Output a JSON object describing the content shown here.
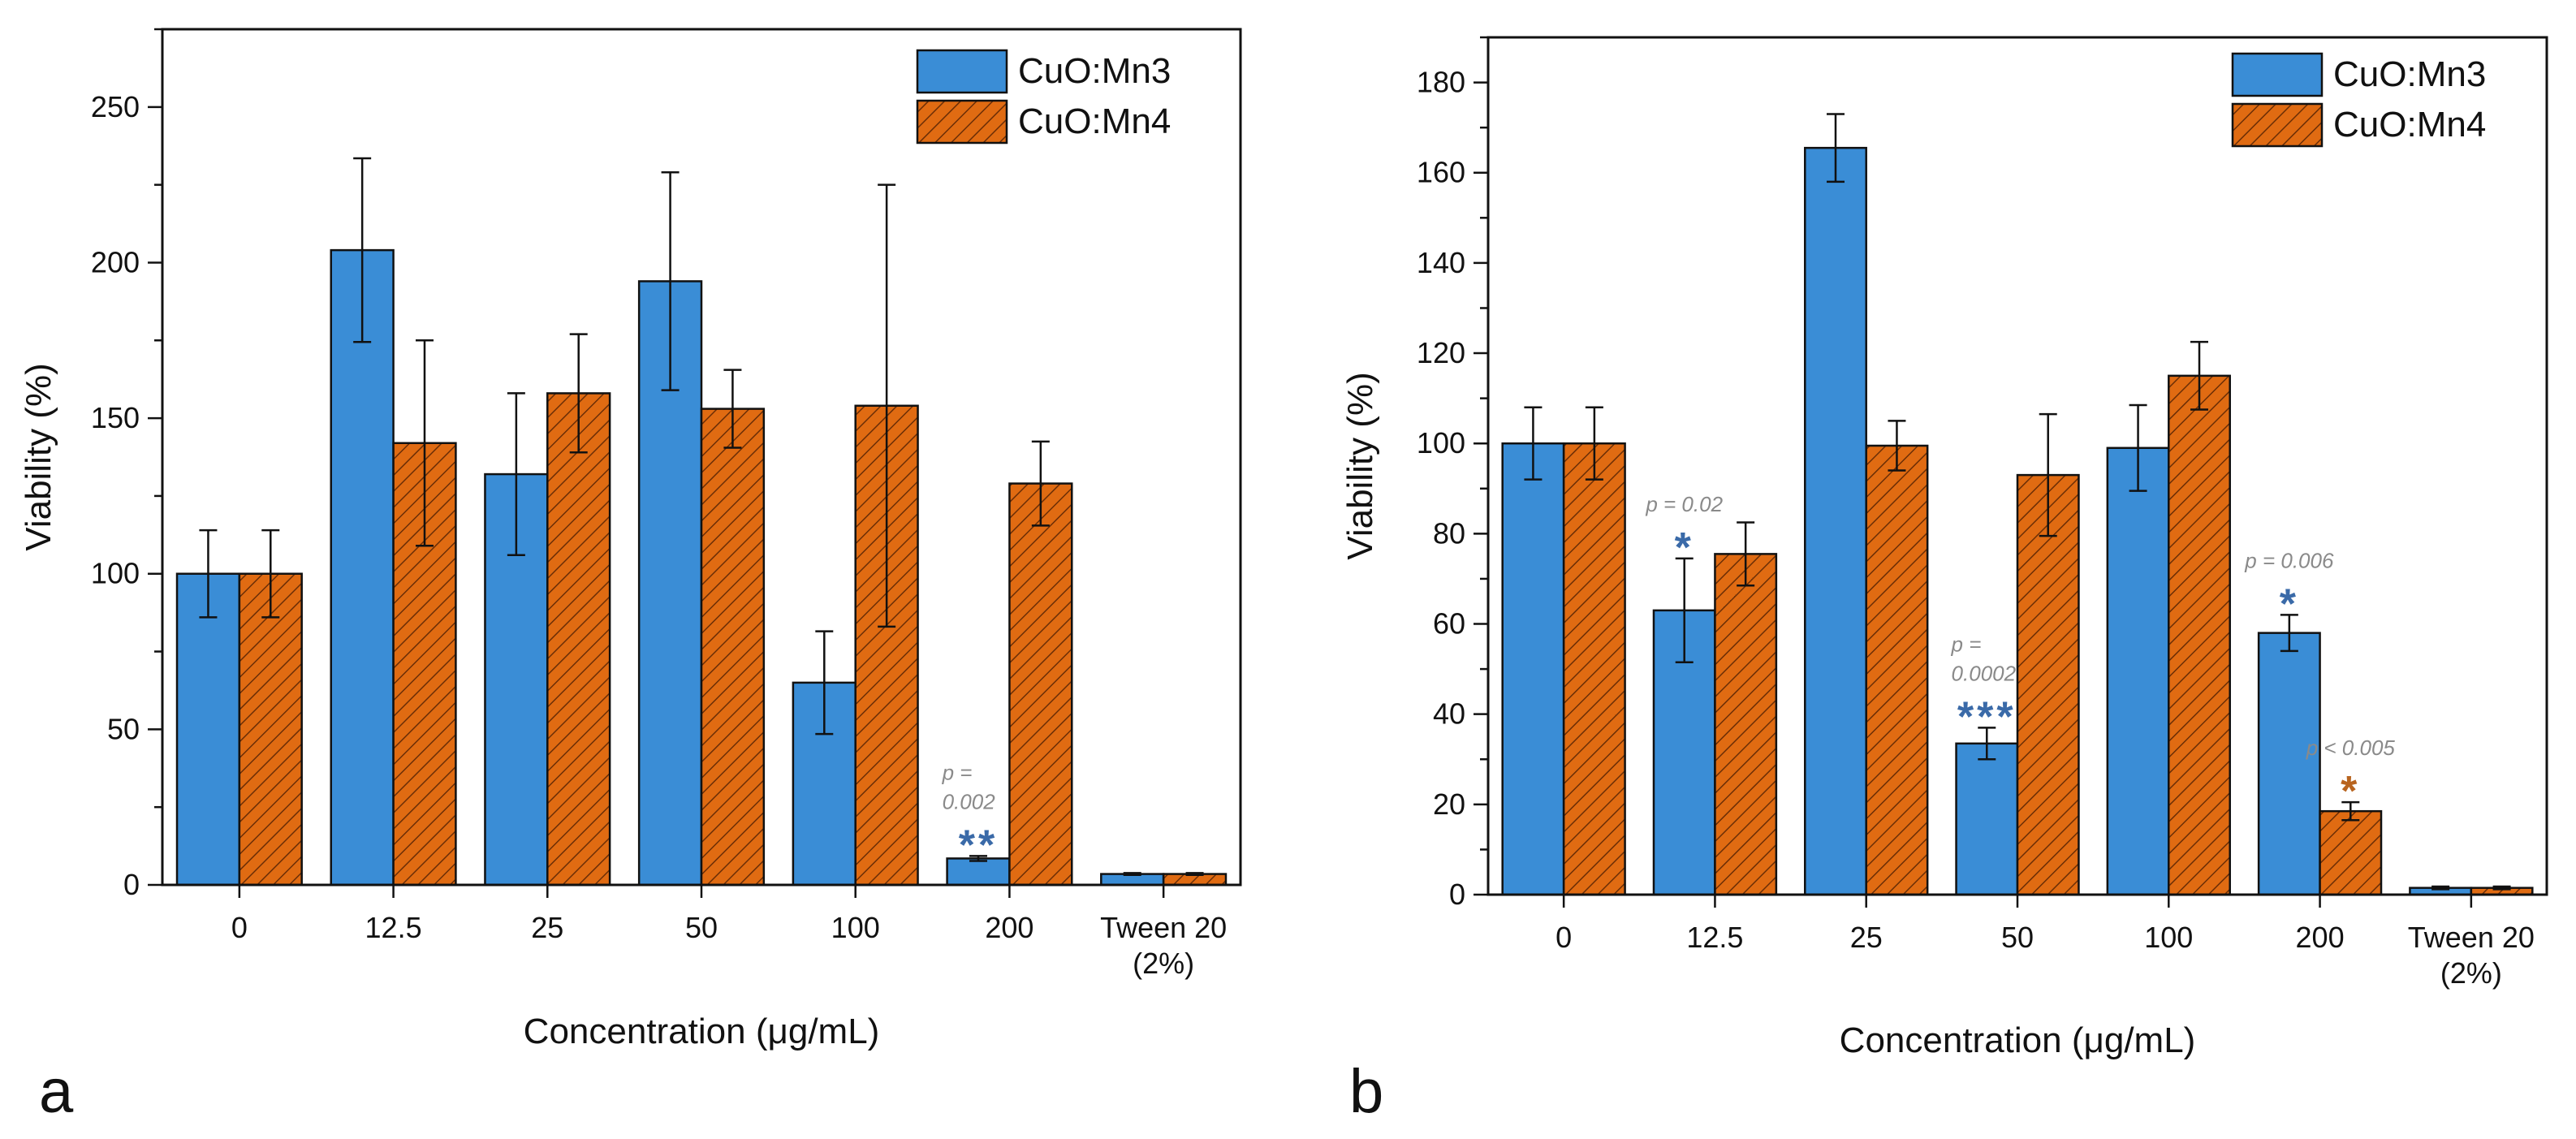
{
  "colors": {
    "mn3": "#3a8dd6",
    "mn4": "#e06b12",
    "hatch": "#6b2e06",
    "sig_blue": "#3a6aa8",
    "sig_orange": "#b8641f",
    "annot_gray": "#8a8a8a"
  },
  "chart_data": [
    {
      "type": "bar",
      "panel_label": "a",
      "title": "",
      "xlabel": "Concentration (μg/mL)",
      "ylabel": "Viability (%)",
      "ylim": [
        0,
        275
      ],
      "yticks": [
        0,
        50,
        100,
        150,
        200,
        250
      ],
      "categories": [
        "0",
        "12.5",
        "25",
        "50",
        "100",
        "200",
        "Tween 20\n(2%)"
      ],
      "legend_position": "top-right",
      "grid": false,
      "series": [
        {
          "name": "CuO:Mn3",
          "values": [
            100,
            204,
            132,
            194,
            65,
            8.5,
            3.5
          ],
          "errors": [
            14,
            29.5,
            26,
            35,
            16.5,
            0.8,
            0.3
          ]
        },
        {
          "name": "CuO:Mn4",
          "values": [
            100,
            142,
            158,
            153,
            154,
            129,
            3.5
          ],
          "errors": [
            14,
            33,
            19,
            12.5,
            71,
            13.5,
            0.3
          ]
        }
      ],
      "annotations": [
        {
          "category": "200",
          "series": 0,
          "p_text": [
            "p =",
            "0.002"
          ],
          "stars": "**"
        }
      ]
    },
    {
      "type": "bar",
      "panel_label": "b",
      "title": "",
      "xlabel": "Concentration (μg/mL)",
      "ylabel": "Viability (%)",
      "ylim": [
        0,
        190
      ],
      "yticks": [
        0,
        20,
        40,
        60,
        80,
        100,
        120,
        140,
        160,
        180
      ],
      "categories": [
        "0",
        "12.5",
        "25",
        "50",
        "100",
        "200",
        "Tween 20\n(2%)"
      ],
      "legend_position": "top-right",
      "grid": false,
      "series": [
        {
          "name": "CuO:Mn3",
          "values": [
            100,
            63,
            165.5,
            33.5,
            99,
            58,
            1.5
          ],
          "errors": [
            8,
            11.5,
            7.5,
            3.5,
            9.5,
            4,
            0.3
          ]
        },
        {
          "name": "CuO:Mn4",
          "values": [
            100,
            75.5,
            99.5,
            93,
            115,
            18.5,
            1.5
          ],
          "errors": [
            8,
            7,
            5.5,
            13.5,
            7.5,
            2,
            0.3
          ]
        }
      ],
      "annotations": [
        {
          "category": "12.5",
          "series": 0,
          "p_text": [
            "p = 0.02"
          ],
          "stars": "*"
        },
        {
          "category": "50",
          "series": 0,
          "p_text": [
            "p =",
            "0.0002"
          ],
          "stars": "***"
        },
        {
          "category": "200",
          "series": 0,
          "p_text": [
            "p = 0.006"
          ],
          "stars": "*"
        },
        {
          "category": "200",
          "series": 1,
          "p_text": [
            "p < 0.005"
          ],
          "stars": "*"
        }
      ]
    }
  ]
}
